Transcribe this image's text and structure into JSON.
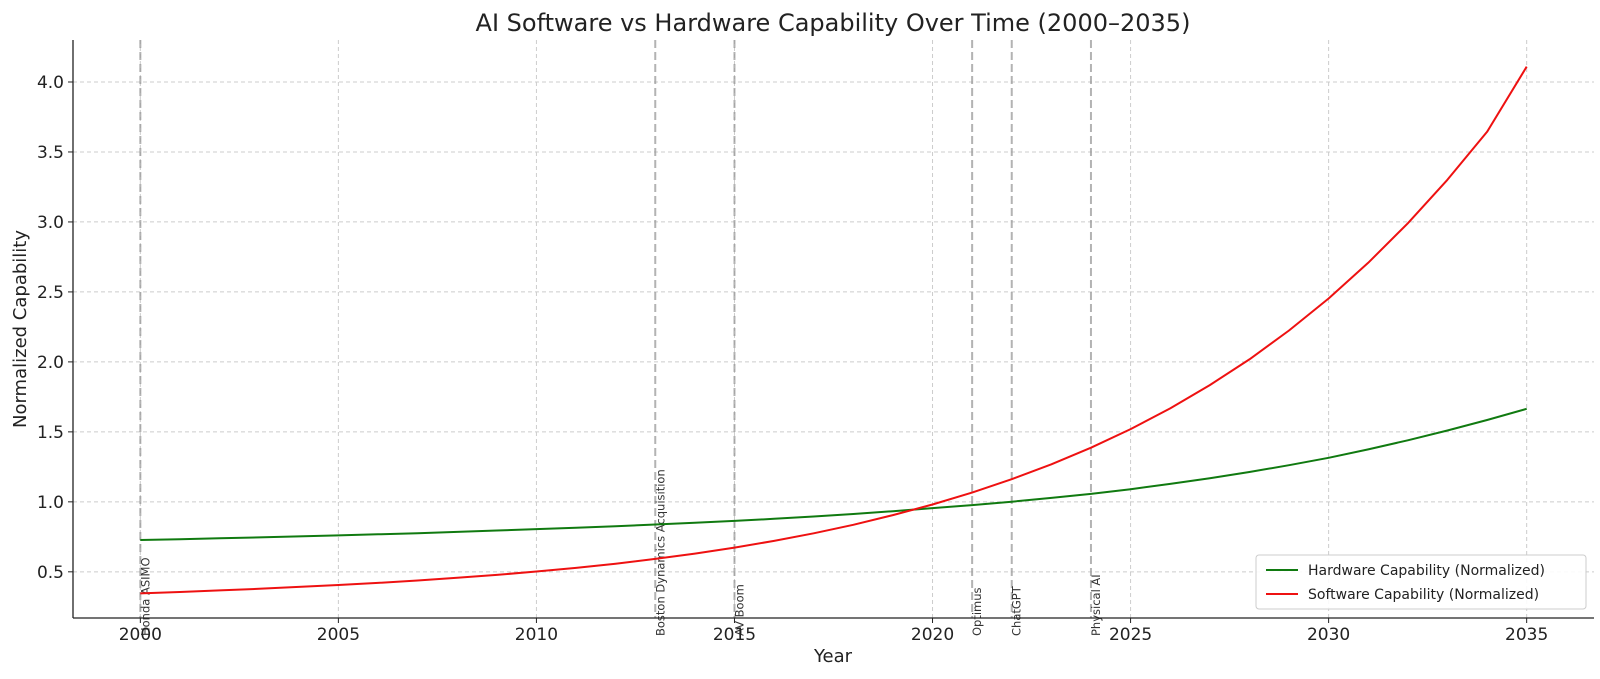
{
  "chart_data": {
    "type": "line",
    "title": "AI Software vs Hardware Capability Over Time (2000–2035)",
    "xlabel": "Year",
    "ylabel": "Normalized Capability",
    "xlim": [
      1998.3,
      2036.7
    ],
    "ylim": [
      0.17,
      4.3
    ],
    "x_ticks": [
      2000,
      2005,
      2010,
      2015,
      2020,
      2025,
      2030,
      2035
    ],
    "y_ticks": [
      0.5,
      1.0,
      1.5,
      2.0,
      2.5,
      3.0,
      3.5,
      4.0
    ],
    "x_tick_labels": [
      "2000",
      "2005",
      "2010",
      "2015",
      "2020",
      "2025",
      "2030",
      "2035"
    ],
    "y_tick_labels": [
      "0.5",
      "1.0",
      "1.5",
      "2.0",
      "2.5",
      "3.0",
      "3.5",
      "4.0"
    ],
    "grid": true,
    "legend_position": "bottom-right",
    "x": [
      2000,
      2001,
      2002,
      2003,
      2004,
      2005,
      2006,
      2007,
      2008,
      2009,
      2010,
      2011,
      2012,
      2013,
      2014,
      2015,
      2016,
      2017,
      2018,
      2019,
      2020,
      2021,
      2022,
      2023,
      2024,
      2025,
      2026,
      2027,
      2028,
      2029,
      2030,
      2031,
      2032,
      2033,
      2034,
      2035
    ],
    "series": [
      {
        "name": "Hardware Capability (Normalized)",
        "color": "#107a10",
        "values": [
          0.727,
          0.733,
          0.74,
          0.746,
          0.753,
          0.76,
          0.768,
          0.776,
          0.785,
          0.795,
          0.805,
          0.815,
          0.826,
          0.838,
          0.851,
          0.864,
          0.879,
          0.895,
          0.913,
          0.933,
          0.955,
          0.977,
          1.001,
          1.028,
          1.057,
          1.09,
          1.128,
          1.168,
          1.213,
          1.262,
          1.315,
          1.375,
          1.44,
          1.51,
          1.585,
          1.665
        ]
      },
      {
        "name": "Software Capability (Normalized)",
        "color": "#ee1111",
        "values": [
          0.346,
          0.356,
          0.367,
          0.379,
          0.392,
          0.406,
          0.421,
          0.438,
          0.457,
          0.478,
          0.502,
          0.528,
          0.558,
          0.592,
          0.63,
          0.673,
          0.721,
          0.775,
          0.836,
          0.905,
          0.981,
          1.066,
          1.162,
          1.268,
          1.387,
          1.52,
          1.668,
          1.834,
          2.018,
          2.224,
          2.453,
          2.708,
          2.99,
          3.301,
          3.644,
          4.11
        ]
      }
    ],
    "events": [
      {
        "x": 2000.0,
        "label": "Honda ASIMO"
      },
      {
        "x": 2013.0,
        "label": "Boston Dynamics Acquisition"
      },
      {
        "x": 2015.0,
        "label": "AV Boom"
      },
      {
        "x": 2021.0,
        "label": "Optimus"
      },
      {
        "x": 2022.0,
        "label": "ChatGPT"
      },
      {
        "x": 2024.0,
        "label": "Physical AI"
      }
    ]
  }
}
